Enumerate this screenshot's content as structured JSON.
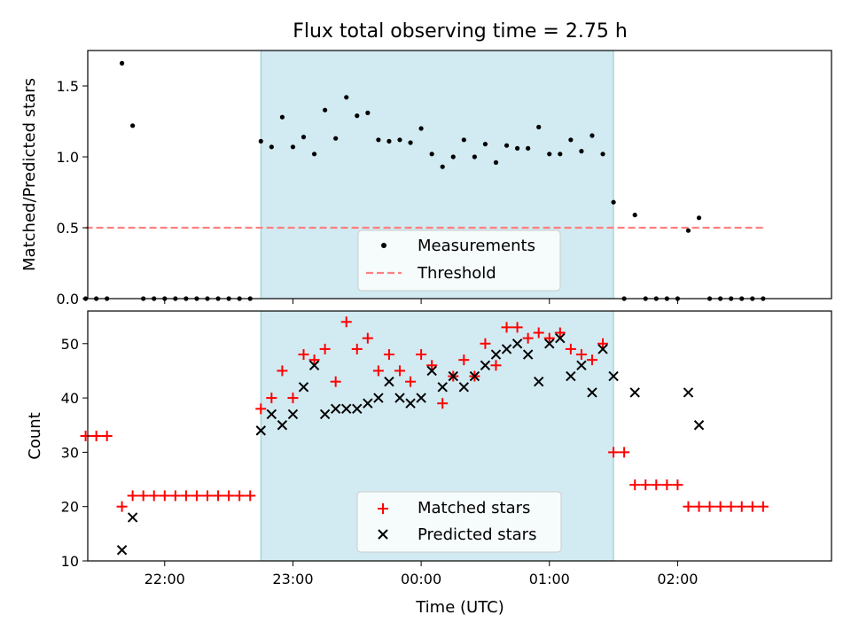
{
  "figure": {
    "title": "Flux total observing time = 2.75 h",
    "xlabel": "Time (UTC)",
    "x_ticks": [
      "22:00",
      "23:00",
      "00:00",
      "01:00",
      "02:00"
    ]
  },
  "colors": {
    "shade": "#add8e6",
    "threshold": "#ff8080",
    "matched": "#ff0000",
    "predicted": "#000000",
    "measurement": "#000000"
  },
  "chart_data": [
    {
      "type": "scatter",
      "ylabel": "Matched/Predicted stars",
      "ylim": [
        0,
        1.75
      ],
      "xlim": [
        -2.6,
        3.2
      ],
      "x_unit": "hours relative to 00:00 UTC",
      "y_ticks": [
        "0.0",
        "0.5",
        "1.0",
        "1.5"
      ],
      "shaded_span": [
        -1.25,
        1.5
      ],
      "legend_position": "lower center",
      "series": [
        {
          "name": "Measurements",
          "marker": "dot",
          "x": [
            -2.6167,
            -2.5333,
            -2.45,
            -2.3333,
            -2.25,
            -2.1667,
            -2.0833,
            -2.0,
            -1.9167,
            -1.8333,
            -1.75,
            -1.6667,
            -1.5833,
            -1.5,
            -1.4167,
            -1.3333,
            -1.25,
            -1.1667,
            -1.0833,
            -1.0,
            -0.9167,
            -0.8333,
            -0.75,
            -0.6667,
            -0.5833,
            -0.5,
            -0.4167,
            -0.3333,
            -0.25,
            -0.1667,
            -0.0833,
            0.0,
            0.0833,
            0.1667,
            0.25,
            0.3333,
            0.4167,
            0.5,
            0.5833,
            0.6667,
            0.75,
            0.8333,
            0.9167,
            1.0,
            1.0833,
            1.1667,
            1.25,
            1.3333,
            1.4167,
            1.5,
            1.5833,
            1.6667,
            1.75,
            1.8333,
            1.9167,
            2.0,
            2.0833,
            2.1667,
            2.25,
            2.3333,
            2.4167,
            2.5,
            2.5833,
            2.6667
          ],
          "y": [
            0,
            0,
            0,
            1.66,
            1.22,
            0,
            0,
            0,
            0,
            0,
            0,
            0,
            0,
            0,
            0,
            0,
            1.11,
            1.07,
            1.28,
            1.07,
            1.14,
            1.02,
            1.33,
            1.13,
            1.42,
            1.29,
            1.31,
            1.12,
            1.11,
            1.12,
            1.1,
            1.2,
            1.02,
            0.93,
            1.0,
            1.12,
            1.0,
            1.09,
            0.96,
            1.08,
            1.06,
            1.06,
            1.21,
            1.02,
            1.02,
            1.12,
            1.04,
            1.15,
            1.02,
            0.68,
            0,
            0.59,
            0,
            0,
            0,
            0,
            0.48,
            0.57,
            0,
            0,
            0,
            0,
            0,
            0
          ]
        },
        {
          "name": "Threshold",
          "style": "dashed",
          "x": [
            -2.6167,
            2.6667
          ],
          "y": [
            0.5,
            0.5
          ]
        }
      ]
    },
    {
      "type": "scatter",
      "ylabel": "Count",
      "ylim": [
        10,
        56
      ],
      "xlim": [
        -2.6,
        3.2
      ],
      "x_unit": "hours relative to 00:00 UTC",
      "y_ticks": [
        "10",
        "20",
        "30",
        "40",
        "50"
      ],
      "shaded_span": [
        -1.25,
        1.5
      ],
      "legend_position": "lower center",
      "series": [
        {
          "name": "Matched stars",
          "marker": "plus",
          "x": [
            -2.6167,
            -2.5333,
            -2.45,
            -2.3333,
            -2.25,
            -2.1667,
            -2.0833,
            -2.0,
            -1.9167,
            -1.8333,
            -1.75,
            -1.6667,
            -1.5833,
            -1.5,
            -1.4167,
            -1.3333,
            -1.25,
            -1.1667,
            -1.0833,
            -1.0,
            -0.9167,
            -0.8333,
            -0.75,
            -0.6667,
            -0.5833,
            -0.5,
            -0.4167,
            -0.3333,
            -0.25,
            -0.1667,
            -0.0833,
            0.0,
            0.0833,
            0.1667,
            0.25,
            0.3333,
            0.4167,
            0.5,
            0.5833,
            0.6667,
            0.75,
            0.8333,
            0.9167,
            1.0,
            1.0833,
            1.1667,
            1.25,
            1.3333,
            1.4167,
            1.5,
            1.5833,
            1.6667,
            1.75,
            1.8333,
            1.9167,
            2.0,
            2.0833,
            2.1667,
            2.25,
            2.3333,
            2.4167,
            2.5,
            2.5833,
            2.6667
          ],
          "y": [
            33,
            33,
            33,
            20,
            22,
            22,
            22,
            22,
            22,
            22,
            22,
            22,
            22,
            22,
            22,
            22,
            38,
            40,
            45,
            40,
            48,
            47,
            49,
            43,
            54,
            49,
            51,
            45,
            48,
            45,
            43,
            48,
            46,
            39,
            44,
            47,
            44,
            50,
            46,
            53,
            53,
            51,
            52,
            51,
            52,
            49,
            48,
            47,
            50,
            30,
            30,
            24,
            24,
            24,
            24,
            24,
            20,
            20,
            20,
            20,
            20,
            20,
            20,
            20
          ]
        },
        {
          "name": "Predicted stars",
          "marker": "x",
          "x": [
            -2.3333,
            -2.25,
            -1.25,
            -1.1667,
            -1.0833,
            -1.0,
            -0.9167,
            -0.8333,
            -0.75,
            -0.6667,
            -0.5833,
            -0.5,
            -0.4167,
            -0.3333,
            -0.25,
            -0.1667,
            -0.0833,
            0.0,
            0.0833,
            0.1667,
            0.25,
            0.3333,
            0.4167,
            0.5,
            0.5833,
            0.6667,
            0.75,
            0.8333,
            0.9167,
            1.0,
            1.0833,
            1.1667,
            1.25,
            1.3333,
            1.4167,
            1.5,
            1.6667,
            2.0833,
            2.1667
          ],
          "y": [
            12,
            18,
            34,
            37,
            35,
            37,
            42,
            46,
            37,
            38,
            38,
            38,
            39,
            40,
            43,
            40,
            39,
            40,
            45,
            42,
            44,
            42,
            44,
            46,
            48,
            49,
            50,
            48,
            43,
            50,
            51,
            44,
            46,
            41,
            49,
            44,
            41,
            41,
            35
          ]
        }
      ]
    }
  ]
}
